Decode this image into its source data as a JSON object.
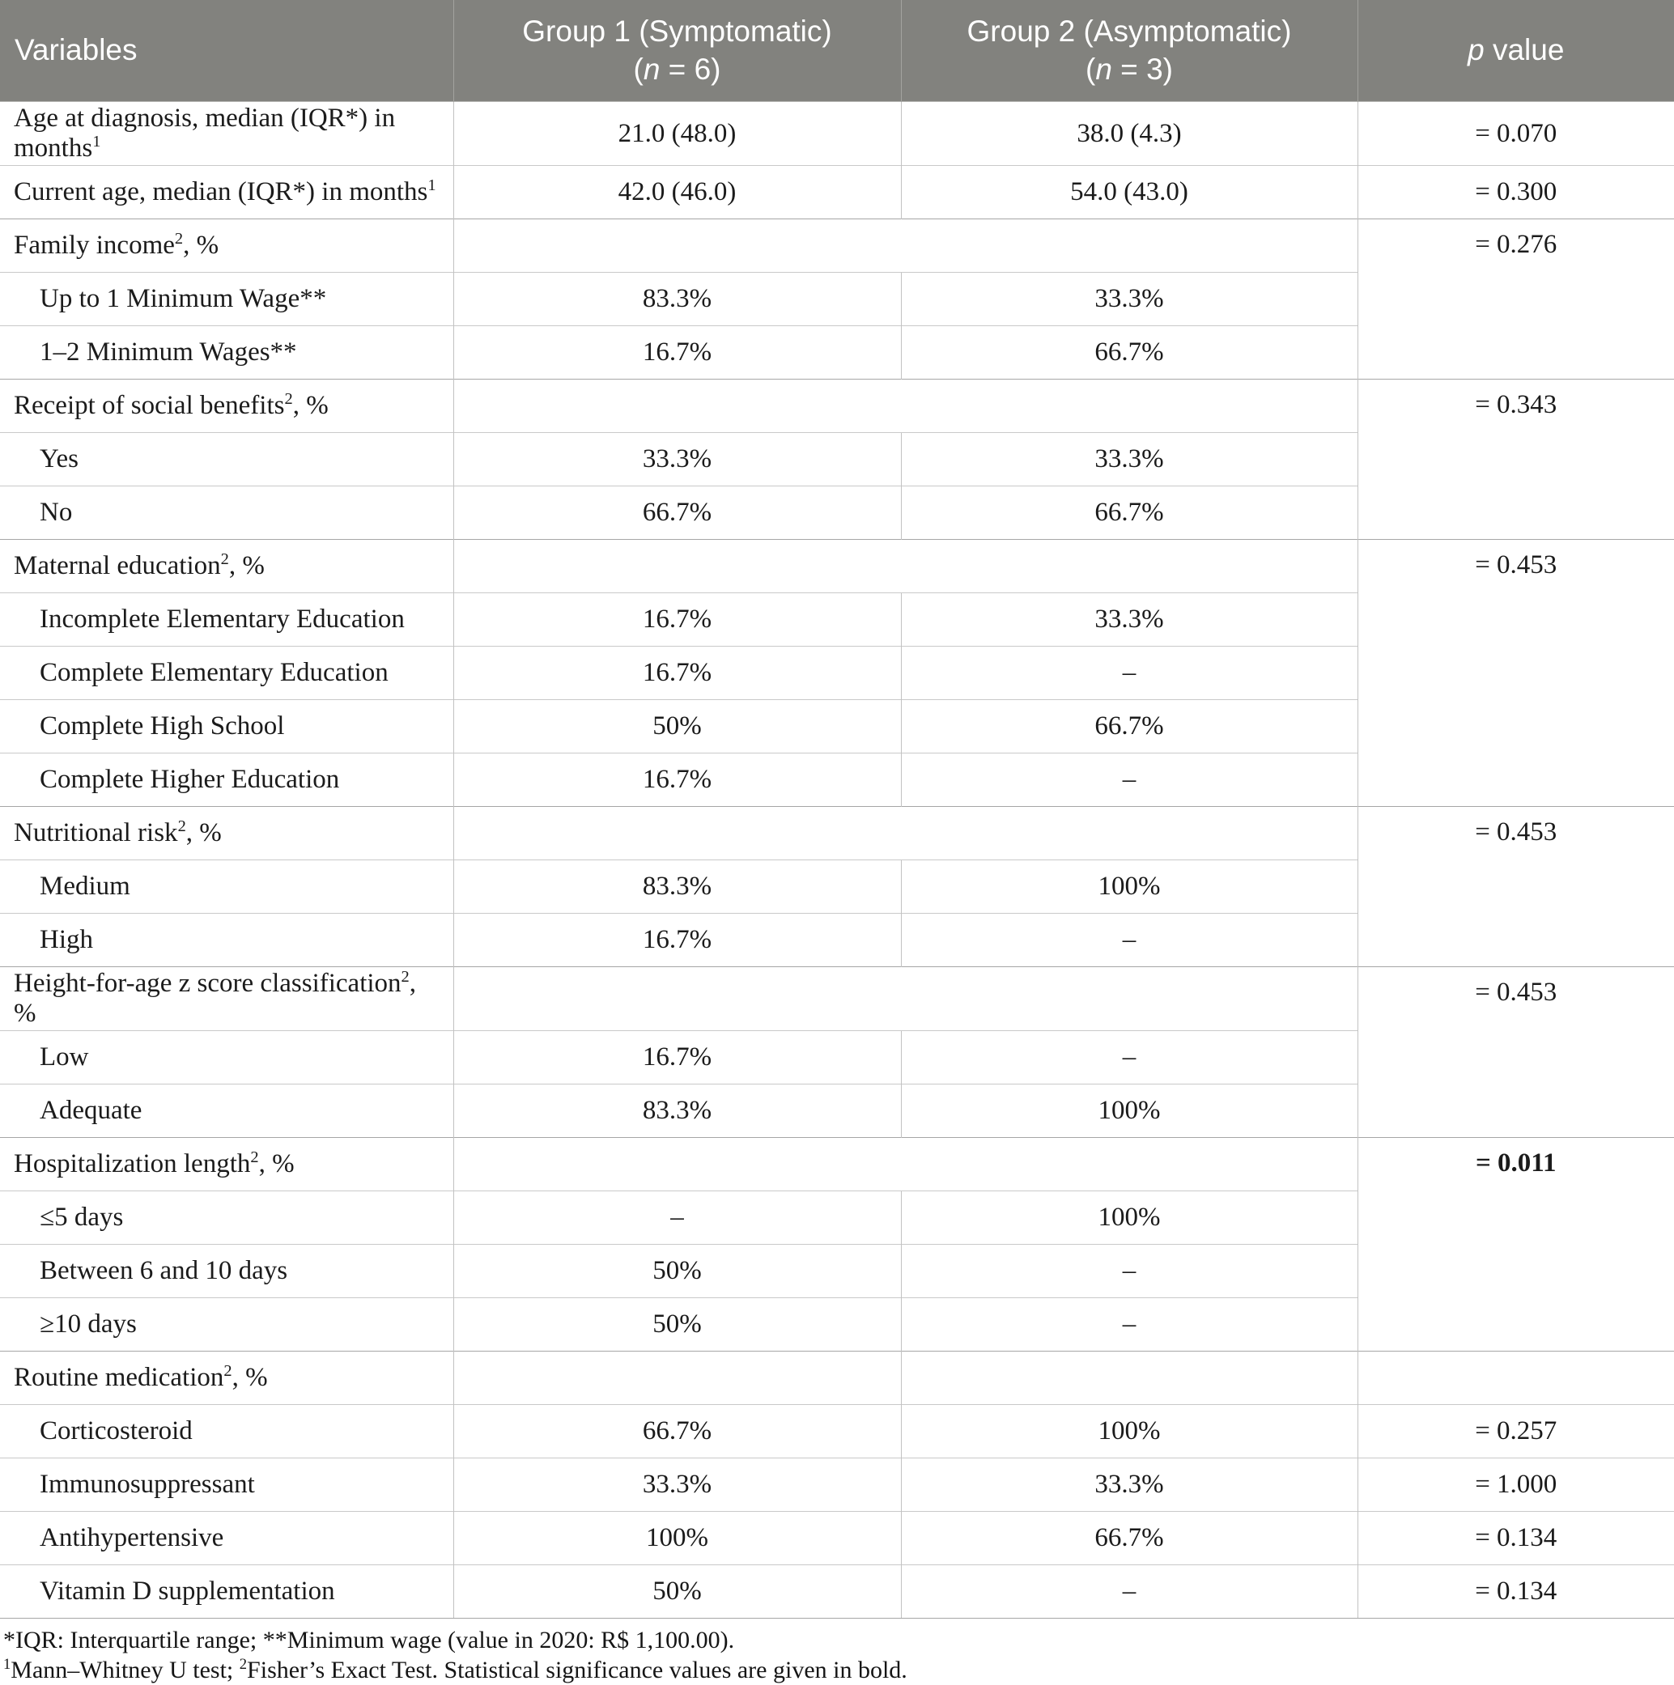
{
  "header": {
    "variables": "Variables",
    "group1": {
      "title": "Group 1 (Symptomatic)",
      "n_open": "(",
      "n_italic": "n",
      "n_rest": " = 6)"
    },
    "group2": {
      "title": "Group 2 (Asymptomatic)",
      "n_open": "(",
      "n_italic": "n",
      "n_rest": " = 3)"
    },
    "p": {
      "italic": "p",
      "rest": " value"
    }
  },
  "rows": [
    {
      "label_pre": "Age at diagnosis, median (IQR*) in months",
      "sup": "1",
      "label_post": "",
      "g1": "21.0 (48.0)",
      "g2": "38.0 (4.3)",
      "p": "= 0.070"
    },
    {
      "label_pre": "Current age, median (IQR*) in months",
      "sup": "1",
      "label_post": "",
      "g1": "42.0 (46.0)",
      "g2": "54.0 (43.0)",
      "p": "= 0.300"
    },
    {
      "label_pre": "Family income",
      "sup": "2",
      "label_post": ", %",
      "g1": "",
      "g2": "",
      "p": "= 0.276"
    },
    {
      "label_pre": "Up to 1 Minimum Wage**",
      "g1": "83.3%",
      "g2": "33.3%"
    },
    {
      "label_pre": "1–2 Minimum Wages**",
      "g1": "16.7%",
      "g2": "66.7%"
    },
    {
      "label_pre": "Receipt of social benefits",
      "sup": "2",
      "label_post": ", %",
      "g1": "",
      "g2": "",
      "p": "= 0.343"
    },
    {
      "label_pre": "Yes",
      "g1": "33.3%",
      "g2": "33.3%"
    },
    {
      "label_pre": "No",
      "g1": "66.7%",
      "g2": "66.7%"
    },
    {
      "label_pre": "Maternal education",
      "sup": "2",
      "label_post": ", %",
      "g1": "",
      "g2": "",
      "p": "= 0.453"
    },
    {
      "label_pre": "Incomplete Elementary Education",
      "g1": "16.7%",
      "g2": "33.3%"
    },
    {
      "label_pre": "Complete Elementary Education",
      "g1": "16.7%",
      "g2": "–"
    },
    {
      "label_pre": "Complete High School",
      "g1": "50%",
      "g2": "66.7%"
    },
    {
      "label_pre": "Complete Higher Education",
      "g1": "16.7%",
      "g2": "–"
    },
    {
      "label_pre": "Nutritional risk",
      "sup": "2",
      "label_post": ", %",
      "g1": "",
      "g2": "",
      "p": "= 0.453"
    },
    {
      "label_pre": "Medium",
      "g1": "83.3%",
      "g2": "100%"
    },
    {
      "label_pre": "High",
      "g1": "16.7%",
      "g2": "–"
    },
    {
      "label_pre": "Height-for-age z score classification",
      "sup": "2",
      "label_post": ", %",
      "g1": "",
      "g2": "",
      "p": "= 0.453"
    },
    {
      "label_pre": "Low",
      "g1": "16.7%",
      "g2": "–"
    },
    {
      "label_pre": "Adequate",
      "g1": "83.3%",
      "g2": "100%"
    },
    {
      "label_pre": "Hospitalization length",
      "sup": "2",
      "label_post": ", %",
      "g1": "",
      "g2": "",
      "p": "= 0.011"
    },
    {
      "label_pre": "≤5 days",
      "g1": "–",
      "g2": "100%"
    },
    {
      "label_pre": "Between 6 and 10 days",
      "g1": "50%",
      "g2": "–"
    },
    {
      "label_pre": "≥10 days",
      "g1": "50%",
      "g2": "–"
    },
    {
      "label_pre": "Routine medication",
      "sup": "2",
      "label_post": ", %",
      "g1": "",
      "g2": "",
      "p": ""
    },
    {
      "label_pre": "Corticosteroid",
      "g1": "66.7%",
      "g2": "100%",
      "p": "= 0.257"
    },
    {
      "label_pre": "Immunosuppressant",
      "g1": "33.3%",
      "g2": "33.3%",
      "p": "= 1.000"
    },
    {
      "label_pre": "Antihypertensive",
      "g1": "100%",
      "g2": "66.7%",
      "p": "= 0.134"
    },
    {
      "label_pre": "Vitamin D supplementation",
      "g1": "50%",
      "g2": "–",
      "p": "= 0.134"
    }
  ],
  "footnotes": {
    "line1": "*IQR: Interquartile range; **Minimum wage (value in 2020: R$ 1,100.00).",
    "line2_sup1": "1",
    "line2_part1": "Mann–Whitney U test; ",
    "line2_sup2": "2",
    "line2_part2": "Fisher’s Exact Test. Statistical significance values are given in bold."
  },
  "colors": {
    "header_bg": "#82827E",
    "header_text": "#FFFFFF",
    "row_border": "#C9C9C9",
    "section_border": "#A6A6A6",
    "body_text": "#1B1B1B"
  }
}
